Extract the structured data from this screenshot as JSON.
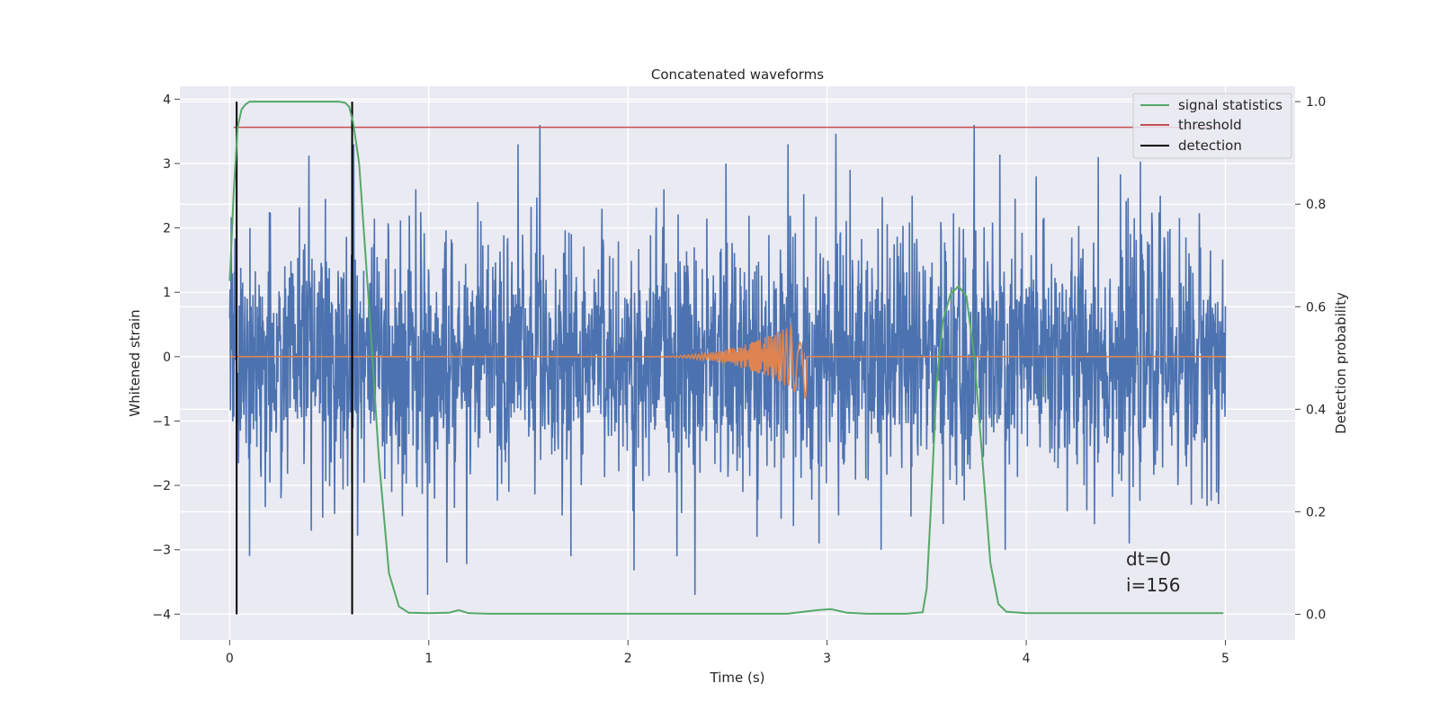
{
  "chart_data": {
    "type": "line",
    "title": "Concatenated waveforms",
    "xlabel": "Time (s)",
    "ylabel_left": "Whitened strain",
    "ylabel_right": "Detection probability",
    "xlim": [
      -0.25,
      5.35
    ],
    "ylim_left": [
      -4.4,
      4.2
    ],
    "ylim_right": [
      -0.05,
      1.03
    ],
    "x_ticks": [
      0,
      1,
      2,
      3,
      4,
      5
    ],
    "y_left_ticks": [
      -4,
      -3,
      -2,
      -1,
      0,
      1,
      2,
      3,
      4
    ],
    "y_right_ticks": [
      0.0,
      0.2,
      0.4,
      0.6,
      0.8,
      1.0
    ],
    "grid": true,
    "legend_position": "top-right",
    "legend": [
      {
        "label": "signal statistics",
        "color": "#55a868"
      },
      {
        "label": "threshold",
        "color": "#c44e52"
      },
      {
        "label": "detection",
        "color": "#000000"
      }
    ],
    "series": [
      {
        "name": "signal statistics",
        "axis": "right",
        "color": "#55a868",
        "x": [
          0.0,
          0.02,
          0.04,
          0.06,
          0.08,
          0.1,
          0.15,
          0.3,
          0.45,
          0.55,
          0.58,
          0.6,
          0.62,
          0.65,
          0.7,
          0.75,
          0.8,
          0.85,
          0.9,
          1.0,
          1.1,
          1.15,
          1.2,
          1.3,
          1.5,
          2.0,
          2.5,
          2.8,
          2.95,
          3.02,
          3.1,
          3.2,
          3.4,
          3.48,
          3.5,
          3.52,
          3.55,
          3.58,
          3.62,
          3.66,
          3.7,
          3.74,
          3.78,
          3.82,
          3.86,
          3.9,
          4.0,
          4.5,
          4.99
        ],
        "y": [
          0.65,
          0.82,
          0.95,
          0.985,
          0.995,
          1.0,
          1.0,
          1.0,
          1.0,
          1.0,
          0.998,
          0.99,
          0.96,
          0.88,
          0.6,
          0.3,
          0.08,
          0.015,
          0.003,
          0.002,
          0.003,
          0.008,
          0.002,
          0.001,
          0.001,
          0.001,
          0.001,
          0.001,
          0.008,
          0.01,
          0.003,
          0.001,
          0.001,
          0.004,
          0.05,
          0.2,
          0.45,
          0.57,
          0.625,
          0.64,
          0.62,
          0.5,
          0.3,
          0.1,
          0.02,
          0.005,
          0.002,
          0.002,
          0.002
        ]
      },
      {
        "name": "threshold",
        "axis": "right",
        "color": "#c44e52",
        "x": [
          0.02,
          5.0
        ],
        "y": [
          0.95,
          0.95
        ]
      },
      {
        "name": "detection",
        "axis": "right",
        "color": "#000000",
        "x": [
          0.035,
          0.615
        ],
        "y": [
          1.0,
          1.0
        ]
      },
      {
        "axis": "left",
        "color": "#4c72b0",
        "kind": "whitened noise",
        "x_range": [
          0.0,
          5.0
        ],
        "amplitude": 3.7,
        "y_sample": [
          0.6,
          -1.7,
          1.3,
          -2.5,
          3.3,
          -1.9,
          2.6,
          -3.2,
          2.4,
          -2.1,
          3.6,
          -3.1,
          2.3,
          -2.4,
          2.6,
          -3.7,
          3.0,
          -2.8,
          3.3,
          -2.9,
          2.9,
          -3.0,
          2.5,
          -2.6,
          3.6,
          -3.0,
          2.8,
          -2.4,
          3.1,
          -2.9,
          2.5,
          -2.3
        ]
      },
      {
        "axis": "left",
        "color": "#dd8452",
        "kind": "chirp",
        "x_range": [
          0.0,
          5.0
        ],
        "chirp_start": 2.0,
        "chirp_end": 2.9,
        "peak_amplitude": 0.68
      }
    ],
    "annotations": [
      "dt=0",
      "i=156"
    ]
  }
}
